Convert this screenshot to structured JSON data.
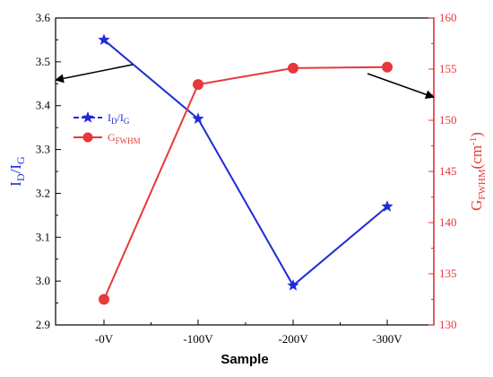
{
  "chart_data": {
    "type": "line",
    "xlabel": "Sample",
    "categories": [
      "-0V",
      "-100V",
      "-200V",
      "-300V"
    ],
    "left_axis": {
      "label_main": "I",
      "label_sub1": "D",
      "label_mid": "/I",
      "label_sub2": "G",
      "ylim": [
        2.9,
        3.6
      ],
      "ticks": [
        "2.9",
        "3.0",
        "3.1",
        "3.2",
        "3.3",
        "3.4",
        "3.5",
        "3.6"
      ],
      "color": "#1f2bd6"
    },
    "right_axis": {
      "label_main": "G",
      "label_sub": "FWHM",
      "label_unit": "(cm",
      "label_sup": "-1",
      "label_close": ")",
      "ylim": [
        130,
        160
      ],
      "ticks": [
        "130",
        "135",
        "140",
        "145",
        "150",
        "155",
        "160"
      ],
      "color": "#e8383b"
    },
    "series": [
      {
        "legend_main": "I",
        "legend_sub1": "D",
        "legend_mid": "/I",
        "legend_sub2": "G",
        "axis": "left",
        "marker": "star",
        "color": "#1f2bd6",
        "values": [
          3.55,
          3.37,
          2.99,
          3.17
        ]
      },
      {
        "legend_main": "G",
        "legend_sub": "FWHM",
        "axis": "right",
        "marker": "circle",
        "color": "#e8383b",
        "values": [
          132.5,
          153.5,
          155.1,
          155.2
        ]
      }
    ],
    "legend_position": "left-middle",
    "grid": false
  }
}
